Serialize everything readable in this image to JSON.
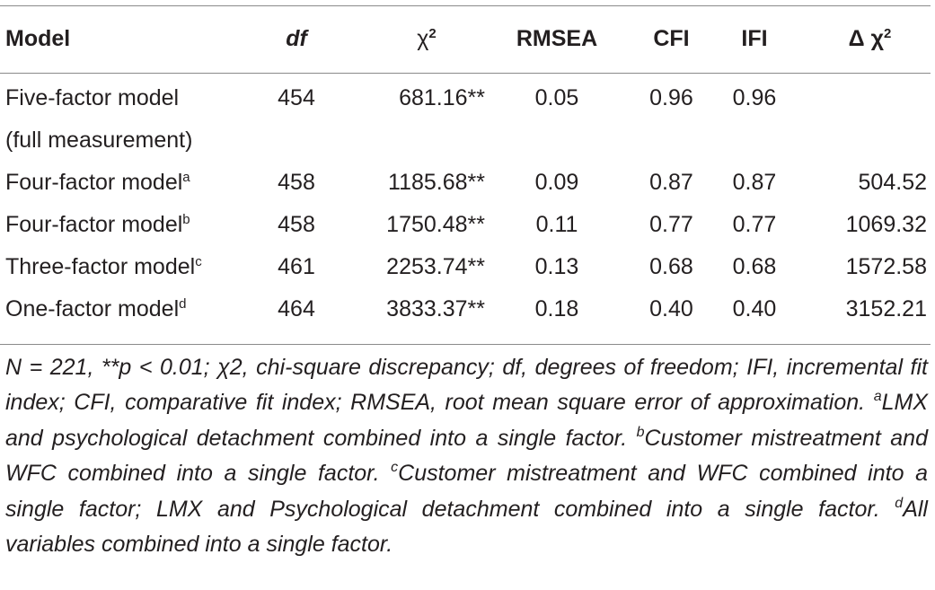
{
  "table": {
    "headers": {
      "model": "Model",
      "df": "df",
      "chi2_symbol": "χ",
      "chi2_sup": "2",
      "rmsea": "RMSEA",
      "cfi": "CFI",
      "ifi": "IFI",
      "delta_chi2_symbol": "Δ χ",
      "delta_chi2_sup": "2"
    },
    "rows": [
      {
        "model": "Five-factor model",
        "sup": "",
        "df": "454",
        "chi2": "681.16**",
        "rmsea": "0.05",
        "cfi": "0.96",
        "ifi": "0.96",
        "delta_chi2": ""
      },
      {
        "model": "(full measurement)",
        "sup": "",
        "df": "",
        "chi2": "",
        "rmsea": "",
        "cfi": "",
        "ifi": "",
        "delta_chi2": ""
      },
      {
        "model": "Four-factor model",
        "sup": "a",
        "df": "458",
        "chi2": "1185.68**",
        "rmsea": "0.09",
        "cfi": "0.87",
        "ifi": "0.87",
        "delta_chi2": "504.52"
      },
      {
        "model": "Four-factor model",
        "sup": "b",
        "df": "458",
        "chi2": "1750.48**",
        "rmsea": "0.11",
        "cfi": "0.77",
        "ifi": "0.77",
        "delta_chi2": "1069.32"
      },
      {
        "model": "Three-factor model",
        "sup": "c",
        "df": "461",
        "chi2": "2253.74**",
        "rmsea": "0.13",
        "cfi": "0.68",
        "ifi": "0.68",
        "delta_chi2": "1572.58"
      },
      {
        "model": "One-factor model",
        "sup": "d",
        "df": "464",
        "chi2": "3833.37**",
        "rmsea": "0.18",
        "cfi": "0.40",
        "ifi": "0.40",
        "delta_chi2": "3152.21"
      }
    ]
  },
  "note": {
    "lead": "N = 221, **p < 0.01; χ2, chi-square discrepancy; df, degrees of freedom; IFI, incremental fit index; CFI, comparative fit index; RMSEA, root mean square error of approximation. ",
    "a_mark": "a",
    "a_text": "LMX and psychological detachment combined into a single factor. ",
    "b_mark": "b",
    "b_text": "Customer mistreatment and WFC combined into a single factor. ",
    "c_mark": "c",
    "c_text": "Customer mistreatment and WFC combined into a single factor; LMX and Psychological detachment combined into a single factor. ",
    "d_mark": "d",
    "d_text": "All variables combined into a single factor."
  }
}
